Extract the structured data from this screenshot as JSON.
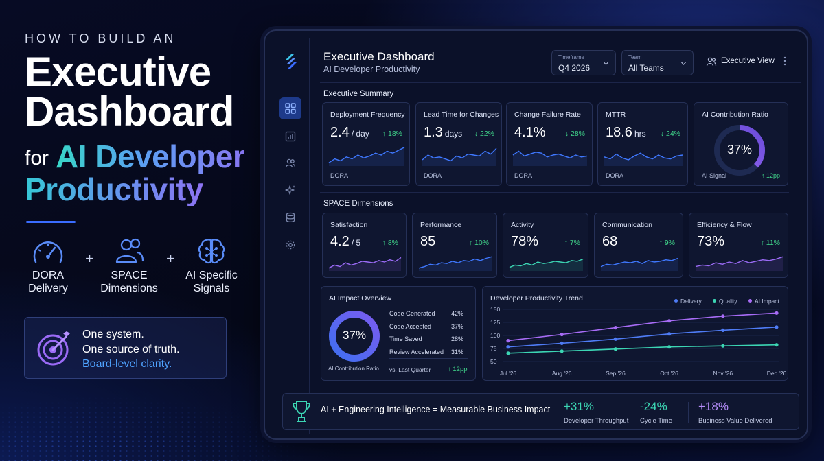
{
  "colors": {
    "accent": "#3a6cff",
    "teal": "#38d7c8",
    "purple": "#8a78f5",
    "positive": "#41d88c",
    "delivery": "#4f7cf6",
    "quality": "#3cd6b4",
    "ai_impact": "#a86cf6"
  },
  "hero": {
    "kicker": "HOW TO BUILD AN",
    "title_line1": "Executive",
    "title_line2": "Dashboard",
    "for": "for",
    "highlight_line1": "AI Developer",
    "highlight_line2": "Productivity",
    "pillars": [
      {
        "icon": "gauge-icon",
        "line1": "DORA",
        "line2": "Delivery"
      },
      {
        "icon": "people-icon",
        "line1": "SPACE",
        "line2": "Dimensions"
      },
      {
        "icon": "brain-icon",
        "line1": "AI Specific",
        "line2": "Signals"
      }
    ],
    "plus": "+",
    "card": {
      "icon": "target-icon",
      "line1": "One system.",
      "line2": "One source of truth.",
      "line3": "Board-level clarity."
    }
  },
  "dashboard": {
    "title": "Executive Dashboard",
    "subtitle": "AI Developer Productivity",
    "timeframe": {
      "label": "Timeframe",
      "value": "Q4 2026"
    },
    "team": {
      "label": "Team",
      "value": "All Teams"
    },
    "view_label": "Executive View",
    "more_icon": "more-vertical-icon",
    "sidebar": [
      "dashboard-grid-icon",
      "chart-icon",
      "users-icon",
      "sparkle-icon",
      "database-icon",
      "settings-icon"
    ],
    "exec_summary": {
      "title": "Executive Summary",
      "cards": [
        {
          "title": "Deployment Frequency",
          "value": "2.4",
          "unit": "/ day",
          "delta": "↑ 18%",
          "footer": "DORA"
        },
        {
          "title": "Lead Time for Changes",
          "value": "1.3",
          "unit": "days",
          "delta": "↓ 22%",
          "footer": "DORA"
        },
        {
          "title": "Change Failure Rate",
          "value": "4.1%",
          "unit": "",
          "delta": "↓ 28%",
          "footer": "DORA"
        },
        {
          "title": "MTTR",
          "value": "18.6",
          "unit": "hrs",
          "delta": "↓ 24%",
          "footer": "DORA"
        }
      ],
      "ai_ratio": {
        "title": "AI Contribution Ratio",
        "value": "37%",
        "percent": 37,
        "footer": "AI Signal",
        "delta": "↑ 12pp"
      }
    },
    "space": {
      "title": "SPACE Dimensions",
      "cards": [
        {
          "title": "Satisfaction",
          "value": "4.2",
          "unit": "/ 5",
          "delta": "↑ 8%"
        },
        {
          "title": "Performance",
          "value": "85",
          "unit": "",
          "delta": "↑ 10%"
        },
        {
          "title": "Activity",
          "value": "78%",
          "unit": "",
          "delta": "↑ 7%"
        },
        {
          "title": "Communication",
          "value": "68",
          "unit": "",
          "delta": "↑ 9%"
        },
        {
          "title": "Efficiency & Flow",
          "value": "73%",
          "unit": "",
          "delta": "↑ 11%"
        }
      ]
    },
    "ai_impact": {
      "title": "AI Impact Overview",
      "donut_value": "37%",
      "percent": 37,
      "donut_label": "AI Contribution Ratio",
      "rows": [
        {
          "label": "Code Generated",
          "value": "42%"
        },
        {
          "label": "Code Accepted",
          "value": "37%"
        },
        {
          "label": "Time Saved",
          "value": "28%"
        },
        {
          "label": "Review Accelerated",
          "value": "31%"
        }
      ],
      "compare_label": "vs. Last Quarter",
      "compare_delta": "↑ 12pp"
    },
    "trend": {
      "title": "Developer Productivity Trend",
      "legend": [
        "Delivery",
        "Quality",
        "AI Impact"
      ]
    },
    "banner": {
      "icon": "trophy-icon",
      "text": "AI + Engineering Intelligence = Measurable Business Impact",
      "stats": [
        {
          "value": "+31%",
          "label": "Developer Throughput",
          "color": "#3cd6b4"
        },
        {
          "value": "-24%",
          "label": "Cycle Time",
          "color": "#3cd6b4"
        },
        {
          "value": "+18%",
          "label": "Business Value Delivered",
          "color": "#b48cf8"
        }
      ]
    }
  },
  "chart_data": {
    "type": "line",
    "title": "Developer Productivity Trend",
    "x": [
      "Jul '26",
      "Aug '26",
      "Sep '26",
      "Oct '26",
      "Nov '26",
      "Dec '26"
    ],
    "ylim": [
      50,
      150
    ],
    "yticks": [
      50,
      75,
      100,
      125,
      150
    ],
    "series": [
      {
        "name": "Delivery",
        "color": "#4f7cf6",
        "values": [
          78,
          85,
          93,
          103,
          110,
          116
        ]
      },
      {
        "name": "Quality",
        "color": "#3cd6b4",
        "values": [
          66,
          70,
          74,
          78,
          80,
          82
        ]
      },
      {
        "name": "AI Impact",
        "color": "#a86cf6",
        "values": [
          90,
          102,
          115,
          128,
          137,
          143
        ]
      }
    ],
    "legend_position": "top-right",
    "grid": true
  }
}
